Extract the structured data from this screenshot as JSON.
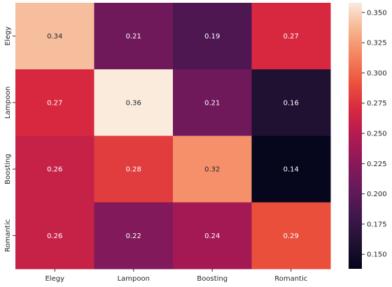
{
  "chart_data": {
    "type": "heatmap",
    "title": "",
    "xlabel": "",
    "ylabel": "",
    "x_categories": [
      "Elegy",
      "Lampoon",
      "Boosting",
      "Romantic"
    ],
    "y_categories": [
      "Elegy",
      "Lampoon",
      "Boosting",
      "Romantic"
    ],
    "values": [
      [
        0.34,
        0.21,
        0.19,
        0.27
      ],
      [
        0.27,
        0.36,
        0.21,
        0.16
      ],
      [
        0.26,
        0.28,
        0.32,
        0.14
      ],
      [
        0.26,
        0.22,
        0.24,
        0.29
      ]
    ],
    "cell_labels": [
      [
        "0.34",
        "0.21",
        "0.19",
        "0.27"
      ],
      [
        "0.27",
        "0.36",
        "0.21",
        "0.16"
      ],
      [
        "0.26",
        "0.28",
        "0.32",
        "0.14"
      ],
      [
        "0.26",
        "0.22",
        "0.24",
        "0.29"
      ]
    ],
    "colormap": "rocket",
    "colorbar": {
      "range": [
        0.138,
        0.358
      ],
      "ticks": [
        0.15,
        0.175,
        0.2,
        0.225,
        0.25,
        0.275,
        0.3,
        0.325,
        0.35
      ],
      "tick_labels": [
        "0.150",
        "0.175",
        "0.200",
        "0.225",
        "0.250",
        "0.275",
        "0.300",
        "0.325",
        "0.350"
      ]
    }
  }
}
